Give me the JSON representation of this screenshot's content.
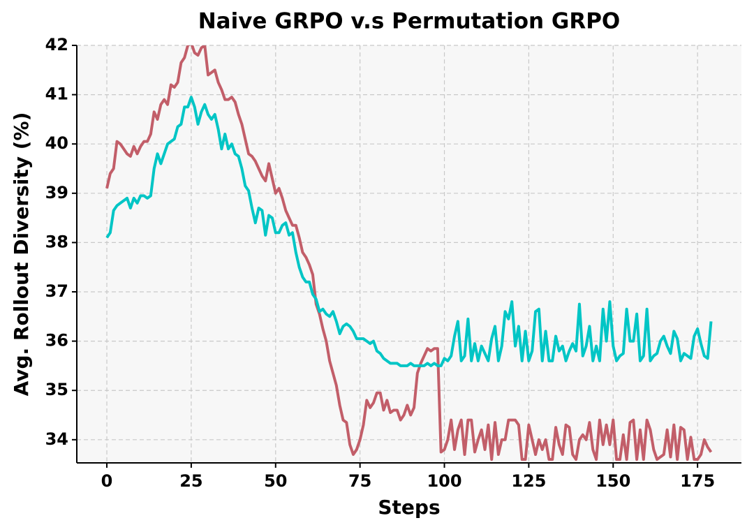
{
  "chart_data": {
    "type": "line",
    "title": "Naive GRPO v.s Permutation GRPO",
    "x_label": "Steps",
    "y_label": "Avg. Rollout Diversity (%)",
    "xlim": [
      -8.9,
      188
    ],
    "ylim": [
      33.53,
      42
    ],
    "xticks": [
      0,
      25,
      50,
      75,
      100,
      125,
      150,
      175
    ],
    "yticks": [
      34,
      35,
      36,
      37,
      38,
      39,
      40,
      41,
      42
    ],
    "grid": true,
    "x": [
      0,
      1,
      2,
      3,
      4,
      5,
      6,
      7,
      8,
      9,
      10,
      11,
      12,
      13,
      14,
      15,
      16,
      17,
      18,
      19,
      20,
      21,
      22,
      23,
      24,
      25,
      26,
      27,
      28,
      29,
      30,
      31,
      32,
      33,
      34,
      35,
      36,
      37,
      38,
      39,
      40,
      41,
      42,
      43,
      44,
      45,
      46,
      47,
      48,
      49,
      50,
      51,
      52,
      53,
      54,
      55,
      56,
      57,
      58,
      59,
      60,
      61,
      62,
      63,
      64,
      65,
      66,
      67,
      68,
      69,
      70,
      71,
      72,
      73,
      74,
      75,
      76,
      77,
      78,
      79,
      80,
      81,
      82,
      83,
      84,
      85,
      86,
      87,
      88,
      89,
      90,
      91,
      92,
      93,
      94,
      95,
      96,
      97,
      98,
      99,
      100,
      101,
      102,
      103,
      104,
      105,
      106,
      107,
      108,
      109,
      110,
      111,
      112,
      113,
      114,
      115,
      116,
      117,
      118,
      119,
      120,
      121,
      122,
      123,
      124,
      125,
      126,
      127,
      128,
      129,
      130,
      131,
      132,
      133,
      134,
      135,
      136,
      137,
      138,
      139,
      140,
      141,
      142,
      143,
      144,
      145,
      146,
      147,
      148,
      149,
      150,
      151,
      152,
      153,
      154,
      155,
      156,
      157,
      158,
      159,
      160,
      161,
      162,
      163,
      164,
      165,
      166,
      167,
      168,
      169,
      170,
      171,
      172,
      173,
      174,
      175,
      176,
      177,
      178,
      179
    ],
    "series": [
      {
        "color": "#c25e69",
        "values": [
          39.1,
          39.4,
          39.5,
          40.05,
          40.0,
          39.9,
          39.8,
          39.75,
          39.95,
          39.8,
          39.95,
          40.05,
          40.05,
          40.2,
          40.65,
          40.5,
          40.8,
          40.9,
          40.8,
          41.2,
          41.15,
          41.25,
          41.65,
          41.75,
          42.0,
          42.05,
          41.85,
          41.8,
          41.95,
          42.0,
          41.4,
          41.45,
          41.5,
          41.25,
          41.1,
          40.9,
          40.9,
          40.95,
          40.85,
          40.6,
          40.4,
          40.1,
          39.8,
          39.75,
          39.65,
          39.5,
          39.35,
          39.25,
          39.6,
          39.3,
          39.0,
          39.1,
          38.9,
          38.65,
          38.5,
          38.35,
          38.35,
          38.1,
          37.8,
          37.7,
          37.55,
          37.35,
          36.75,
          36.55,
          36.25,
          36.0,
          35.6,
          35.35,
          35.1,
          34.7,
          34.4,
          34.35,
          33.9,
          33.7,
          33.8,
          34.0,
          34.3,
          34.8,
          34.65,
          34.75,
          34.95,
          34.95,
          34.6,
          34.8,
          34.55,
          34.6,
          34.6,
          34.4,
          34.5,
          34.7,
          34.5,
          34.65,
          35.35,
          35.55,
          35.7,
          35.85,
          35.8,
          35.85,
          35.85,
          33.75,
          33.8,
          34.0,
          34.4,
          33.8,
          34.2,
          34.4,
          33.7,
          34.4,
          34.4,
          33.75,
          34.0,
          34.2,
          33.8,
          34.3,
          33.6,
          34.35,
          33.7,
          34.0,
          34.0,
          34.4,
          34.4,
          34.4,
          34.3,
          33.6,
          33.6,
          34.3,
          34.0,
          33.7,
          34.0,
          33.8,
          34.0,
          33.6,
          33.6,
          34.25,
          33.9,
          33.7,
          34.3,
          34.25,
          33.7,
          33.6,
          34.0,
          34.1,
          34.0,
          34.35,
          33.8,
          33.6,
          34.4,
          33.9,
          34.3,
          33.9,
          34.4,
          33.6,
          33.6,
          34.1,
          33.6,
          34.35,
          34.4,
          33.6,
          34.2,
          33.6,
          34.4,
          34.2,
          33.8,
          33.6,
          33.65,
          33.7,
          34.2,
          33.65,
          34.3,
          33.6,
          34.25,
          34.2,
          33.6,
          34.05,
          33.6,
          33.6,
          33.7,
          34.0,
          33.85,
          33.75
        ]
      },
      {
        "color": "#00c5c5",
        "values": [
          38.1,
          38.2,
          38.65,
          38.75,
          38.8,
          38.85,
          38.9,
          38.7,
          38.9,
          38.8,
          38.95,
          38.95,
          38.9,
          38.95,
          39.5,
          39.8,
          39.6,
          39.8,
          40.0,
          40.05,
          40.1,
          40.35,
          40.4,
          40.75,
          40.75,
          40.95,
          40.75,
          40.4,
          40.65,
          40.8,
          40.6,
          40.5,
          40.6,
          40.3,
          39.9,
          40.2,
          39.9,
          40.0,
          39.8,
          39.75,
          39.5,
          39.15,
          39.05,
          38.7,
          38.4,
          38.7,
          38.65,
          38.15,
          38.55,
          38.5,
          38.2,
          38.2,
          38.35,
          38.4,
          38.15,
          38.2,
          37.8,
          37.5,
          37.3,
          37.2,
          37.2,
          36.95,
          36.85,
          36.6,
          36.65,
          36.55,
          36.5,
          36.6,
          36.4,
          36.15,
          36.3,
          36.35,
          36.3,
          36.2,
          36.05,
          36.05,
          36.05,
          36.0,
          35.95,
          36.0,
          35.8,
          35.75,
          35.65,
          35.6,
          35.55,
          35.55,
          35.55,
          35.5,
          35.5,
          35.5,
          35.55,
          35.5,
          35.5,
          35.5,
          35.5,
          35.55,
          35.5,
          35.55,
          35.5,
          35.5,
          35.65,
          35.6,
          35.7,
          36.1,
          36.4,
          35.6,
          35.7,
          36.45,
          35.6,
          35.95,
          35.6,
          35.9,
          35.75,
          35.6,
          36.05,
          36.3,
          35.6,
          35.9,
          36.6,
          36.45,
          36.8,
          35.9,
          36.3,
          35.6,
          36.2,
          35.6,
          35.8,
          36.6,
          36.65,
          35.6,
          36.2,
          35.6,
          35.6,
          36.1,
          35.8,
          35.9,
          35.6,
          35.8,
          35.95,
          35.8,
          36.75,
          35.7,
          35.9,
          36.3,
          35.6,
          35.9,
          35.6,
          36.65,
          36.0,
          36.8,
          35.9,
          35.6,
          35.7,
          35.75,
          36.65,
          36.0,
          36.0,
          36.55,
          35.6,
          35.7,
          36.65,
          35.6,
          35.7,
          35.75,
          36.0,
          36.1,
          35.9,
          35.75,
          36.2,
          36.05,
          35.6,
          35.75,
          35.7,
          35.65,
          36.1,
          36.25,
          35.95,
          35.7,
          35.65,
          36.4
        ]
      }
    ]
  }
}
